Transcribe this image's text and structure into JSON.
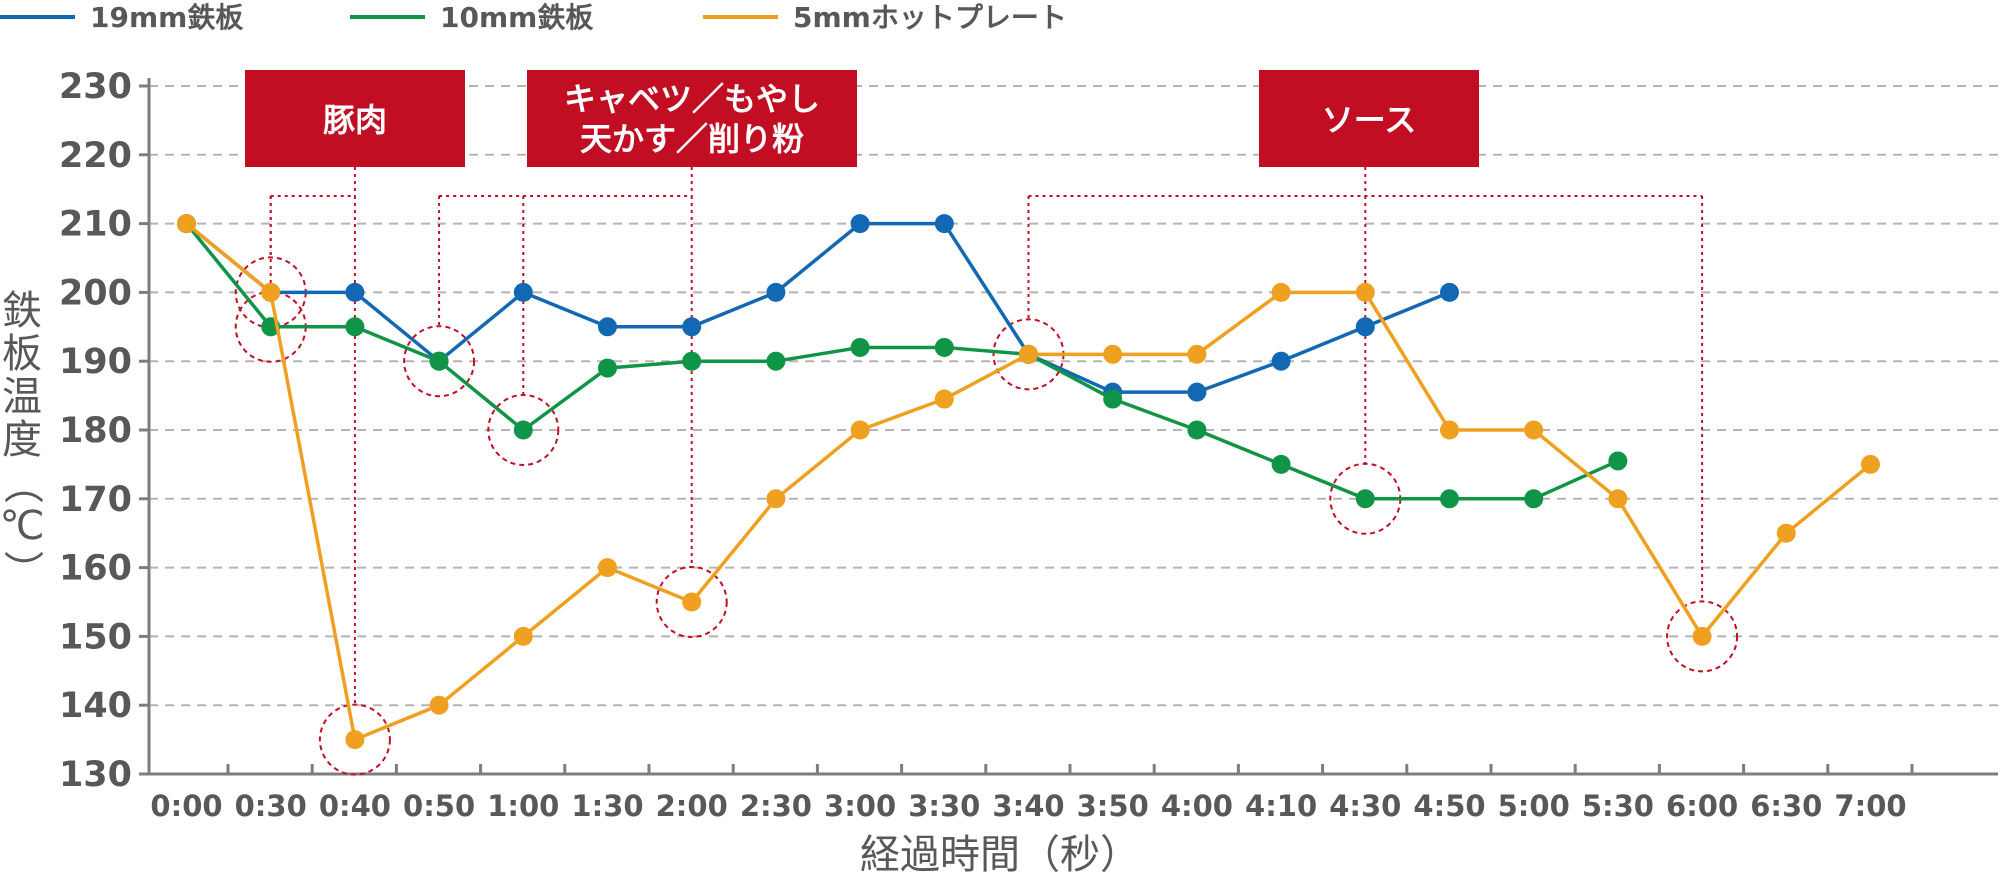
{
  "chart_data": {
    "type": "line",
    "categories": [
      "0:00",
      "0:30",
      "0:40",
      "0:50",
      "1:00",
      "1:30",
      "2:00",
      "2:30",
      "3:00",
      "3:30",
      "3:40",
      "3:50",
      "4:00",
      "4:10",
      "4:30",
      "4:50",
      "5:00",
      "5:30",
      "6:00",
      "6:30",
      "7:00"
    ],
    "xlabel": "経過時間（秒）",
    "ylabel": "鉄板温度（℃）",
    "ylim": [
      130,
      230
    ],
    "yticks": [
      130,
      140,
      150,
      160,
      170,
      180,
      190,
      200,
      210,
      220,
      230
    ],
    "grid": true,
    "legend_position": "top-left",
    "series": [
      {
        "name": "19mm鉄板",
        "color": "#1268B3",
        "x": [
          0,
          1,
          2,
          3,
          4,
          5,
          6,
          7,
          8,
          9,
          10,
          11,
          12,
          13,
          14,
          15
        ],
        "values": [
          210,
          200,
          200,
          190,
          200,
          195,
          195,
          200,
          210,
          210,
          191,
          185.5,
          185.5,
          190,
          195,
          200
        ]
      },
      {
        "name": "10mm鉄板",
        "color": "#109447",
        "x": [
          0,
          1,
          2,
          3,
          4,
          5,
          6,
          7,
          8,
          9,
          10,
          11,
          12,
          13,
          14,
          15,
          16,
          17
        ],
        "values": [
          210,
          195,
          195,
          190,
          180,
          189,
          190,
          190,
          192,
          192,
          191,
          184.5,
          180,
          175,
          170,
          170,
          170,
          175.5
        ]
      },
      {
        "name": "5mmホットプレート",
        "color": "#F0A021",
        "x": [
          0,
          1,
          2,
          3,
          4,
          5,
          6,
          7,
          8,
          9,
          10,
          11,
          12,
          13,
          14,
          15,
          16,
          17,
          18,
          19,
          20
        ],
        "values": [
          210,
          200,
          135,
          140,
          150,
          160,
          155,
          170,
          180,
          184.5,
          191,
          191,
          191,
          200,
          200,
          180,
          180,
          170,
          150,
          165,
          175
        ]
      }
    ],
    "annotations": [
      {
        "label_lines": [
          "豚肉"
        ],
        "targets": [
          [
            1,
            200
          ],
          [
            1,
            195
          ],
          [
            2,
            135
          ]
        ]
      },
      {
        "label_lines": [
          "キャベツ／もやし",
          "天かす／削り粉"
        ],
        "targets": [
          [
            3,
            190
          ],
          [
            4,
            180
          ],
          [
            6,
            155
          ]
        ]
      },
      {
        "label_lines": [
          "ソース"
        ],
        "targets": [
          [
            10,
            191
          ],
          [
            14,
            170
          ],
          [
            18,
            150
          ]
        ]
      }
    ],
    "colors": {
      "annotation": "#C20E23",
      "grid": "#b5b5b5",
      "axis": "#7d7d7d",
      "text": "#595757"
    }
  }
}
